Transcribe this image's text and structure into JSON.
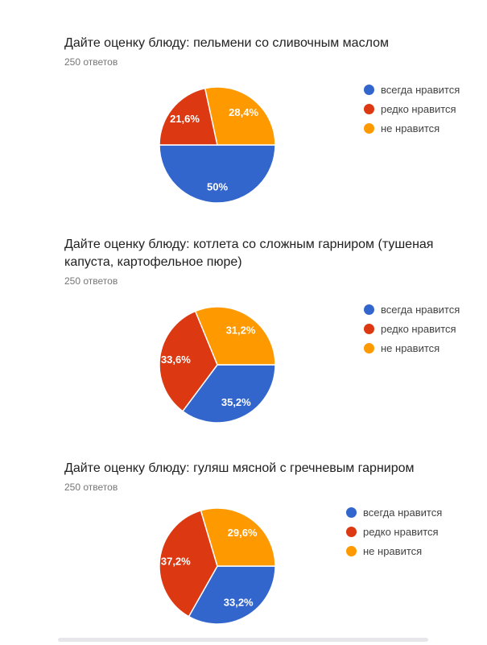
{
  "page": {
    "background": "#ffffff"
  },
  "scrollbar": {
    "color": "#e7e7eb"
  },
  "chart_data": [
    {
      "type": "pie",
      "title": "Дайте оценку блюду: пельмени со сливочным маслом",
      "responses_label": "250 ответов",
      "categories": [
        "всегда нравится",
        "редко нравится",
        "не нравится"
      ],
      "values": [
        50,
        21.6,
        28.4
      ],
      "value_labels": [
        "50%",
        "21,6%",
        "28,4%"
      ],
      "colors": [
        "#3366cc",
        "#dc3912",
        "#ff9900"
      ],
      "start_angle_deg": 90,
      "legend_position": "right"
    },
    {
      "type": "pie",
      "title": "Дайте оценку блюду: котлета со сложным гарниром (тушеная капуста, картофельное пюре)",
      "responses_label": "250 ответов",
      "categories": [
        "всегда нравится",
        "редко нравится",
        "не нравится"
      ],
      "values": [
        35.2,
        33.6,
        31.2
      ],
      "value_labels": [
        "35,2%",
        "33,6%",
        "31,2%"
      ],
      "colors": [
        "#3366cc",
        "#dc3912",
        "#ff9900"
      ],
      "start_angle_deg": 90,
      "legend_position": "right"
    },
    {
      "type": "pie",
      "title": "Дайте оценку блюду: гуляш мясной с гречневым гарниром",
      "responses_label": "250 ответов",
      "categories": [
        "всегда нравится",
        "редко нравится",
        "не нравится"
      ],
      "values": [
        33.2,
        37.2,
        29.6
      ],
      "value_labels": [
        "33,2%",
        "37,2%",
        "29,6%"
      ],
      "colors": [
        "#3366cc",
        "#dc3912",
        "#ff9900"
      ],
      "start_angle_deg": 90,
      "legend_position": "right"
    }
  ]
}
